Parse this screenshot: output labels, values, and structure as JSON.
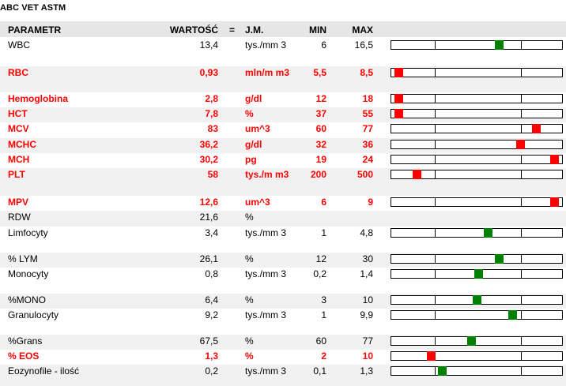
{
  "report_title": "ABC VET ASTM",
  "headers": {
    "param": "PARAMETR",
    "value": "WARTOŚĆ",
    "eq": "=",
    "unit": "J.M.",
    "min": "MIN",
    "max": "MAX"
  },
  "colors": {
    "normal": "#008000",
    "alert": "#ff0000",
    "shade": "#f1f1f1",
    "header": "#e6e6e6"
  },
  "rows": [
    {
      "name": "WBC",
      "value": "13,4",
      "unit": "tys./mm 3",
      "min": "6",
      "max": "16,5",
      "alert": false,
      "has_bar": true,
      "level": 0.64
    },
    {
      "name": "RBC",
      "value": "0,93",
      "unit": "mln/m m3",
      "min": "5,5",
      "max": "8,5",
      "alert": true,
      "has_bar": true,
      "level": 0.02
    },
    {
      "name": "Hemoglobina",
      "value": "2,8",
      "unit": "g/dl",
      "min": "12",
      "max": "18",
      "alert": true,
      "has_bar": true,
      "level": 0.02
    },
    {
      "name": "HCT",
      "value": "7,8",
      "unit": "%",
      "min": "37",
      "max": "55",
      "alert": true,
      "has_bar": true,
      "level": 0.02
    },
    {
      "name": "MCV",
      "value": "83",
      "unit": "um^3",
      "min": "60",
      "max": "77",
      "alert": true,
      "has_bar": true,
      "level": 0.87
    },
    {
      "name": "MCHC",
      "value": "36,2",
      "unit": "g/dl",
      "min": "32",
      "max": "36",
      "alert": true,
      "has_bar": true,
      "level": 0.77
    },
    {
      "name": "MCH",
      "value": "30,2",
      "unit": "pg",
      "min": "19",
      "max": "24",
      "alert": true,
      "has_bar": true,
      "level": 0.98
    },
    {
      "name": "PLT",
      "value": "58",
      "unit": "tys./m m3",
      "min": "200",
      "max": "500",
      "alert": true,
      "has_bar": true,
      "level": 0.13
    },
    {
      "name": "MPV",
      "value": "12,6",
      "unit": "um^3",
      "min": "6",
      "max": "9",
      "alert": true,
      "has_bar": true,
      "level": 0.98
    },
    {
      "name": "RDW",
      "value": "21,6",
      "unit": "%",
      "min": "",
      "max": "",
      "alert": false,
      "has_bar": false,
      "level": null
    },
    {
      "name": "Limfocyty",
      "value": "3,4",
      "unit": "tys./mm 3",
      "min": "1",
      "max": "4,8",
      "alert": false,
      "has_bar": true,
      "level": 0.57
    },
    {
      "name": "% LYM",
      "value": "26,1",
      "unit": "%",
      "min": "12",
      "max": "30",
      "alert": false,
      "has_bar": true,
      "level": 0.64
    },
    {
      "name": "Monocyty",
      "value": "0,8",
      "unit": "tys./mm 3",
      "min": "0,2",
      "max": "1,4",
      "alert": false,
      "has_bar": true,
      "level": 0.51
    },
    {
      "name": "%MONO",
      "value": "6,4",
      "unit": "%",
      "min": "3",
      "max": "10",
      "alert": false,
      "has_bar": true,
      "level": 0.5
    },
    {
      "name": "Granulocyty",
      "value": "9,2",
      "unit": "tys./mm 3",
      "min": "1",
      "max": "9,9",
      "alert": false,
      "has_bar": true,
      "level": 0.72
    },
    {
      "name": "%Grans",
      "value": "67,5",
      "unit": "%",
      "min": "60",
      "max": "77",
      "alert": false,
      "has_bar": true,
      "level": 0.47
    },
    {
      "name": "% EOS",
      "value": "1,3",
      "unit": "%",
      "min": "2",
      "max": "10",
      "alert": true,
      "has_bar": true,
      "level": 0.22
    },
    {
      "name": "Eozynofile - ilość",
      "value": "0,2",
      "unit": "tys./mm 3",
      "min": "0,1",
      "max": "1,3",
      "alert": false,
      "has_bar": true,
      "level": 0.29
    }
  ]
}
